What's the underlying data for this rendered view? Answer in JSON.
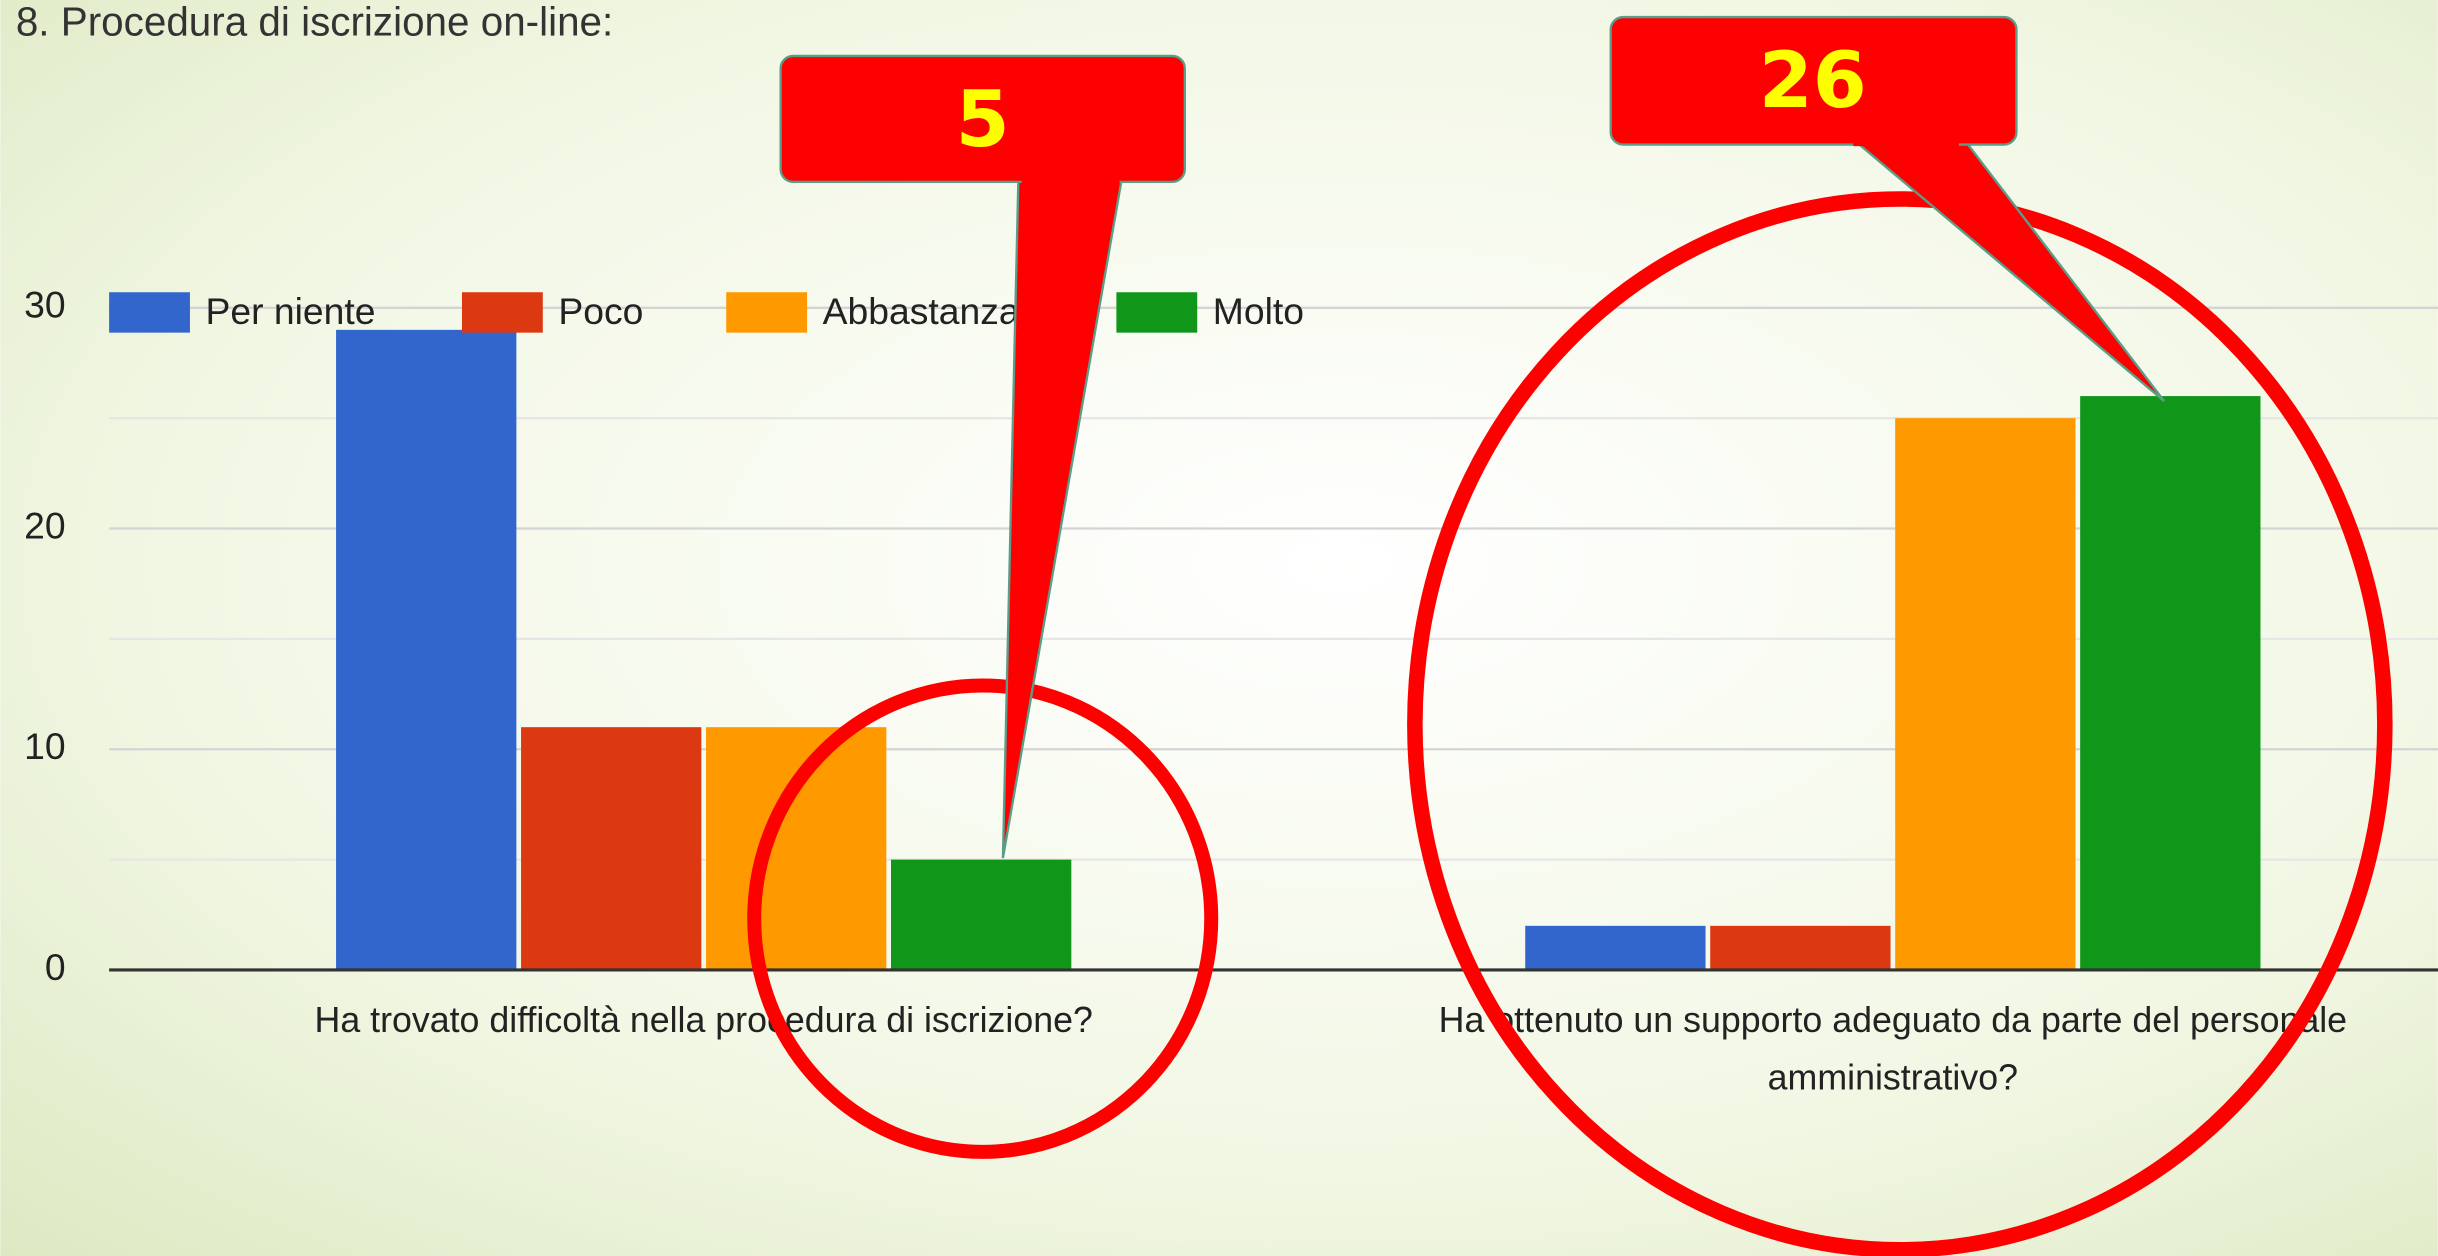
{
  "chart_data": {
    "type": "bar",
    "title": "8. Procedura di iscrizione on-line:",
    "categories": [
      "Ha trovato difficoltà nella procedura di iscrizione?",
      "Ha ottenuto un supporto adeguato da parte del personale amministrativo?"
    ],
    "series": [
      {
        "name": "Per niente",
        "color": "#3366cc",
        "values": [
          29,
          2
        ]
      },
      {
        "name": "Poco",
        "color": "#dc3912",
        "values": [
          11,
          2
        ]
      },
      {
        "name": "Abbastanza",
        "color": "#ff9900",
        "values": [
          11,
          25
        ]
      },
      {
        "name": "Molto",
        "color": "#109618",
        "values": [
          5,
          26
        ]
      }
    ],
    "ylim": [
      0,
      30
    ],
    "yticks": [
      0,
      10,
      20,
      30
    ],
    "minor_yticks": [
      5,
      15,
      25
    ],
    "grid": true,
    "legend": "top",
    "annotations": [
      "5",
      "26"
    ]
  }
}
